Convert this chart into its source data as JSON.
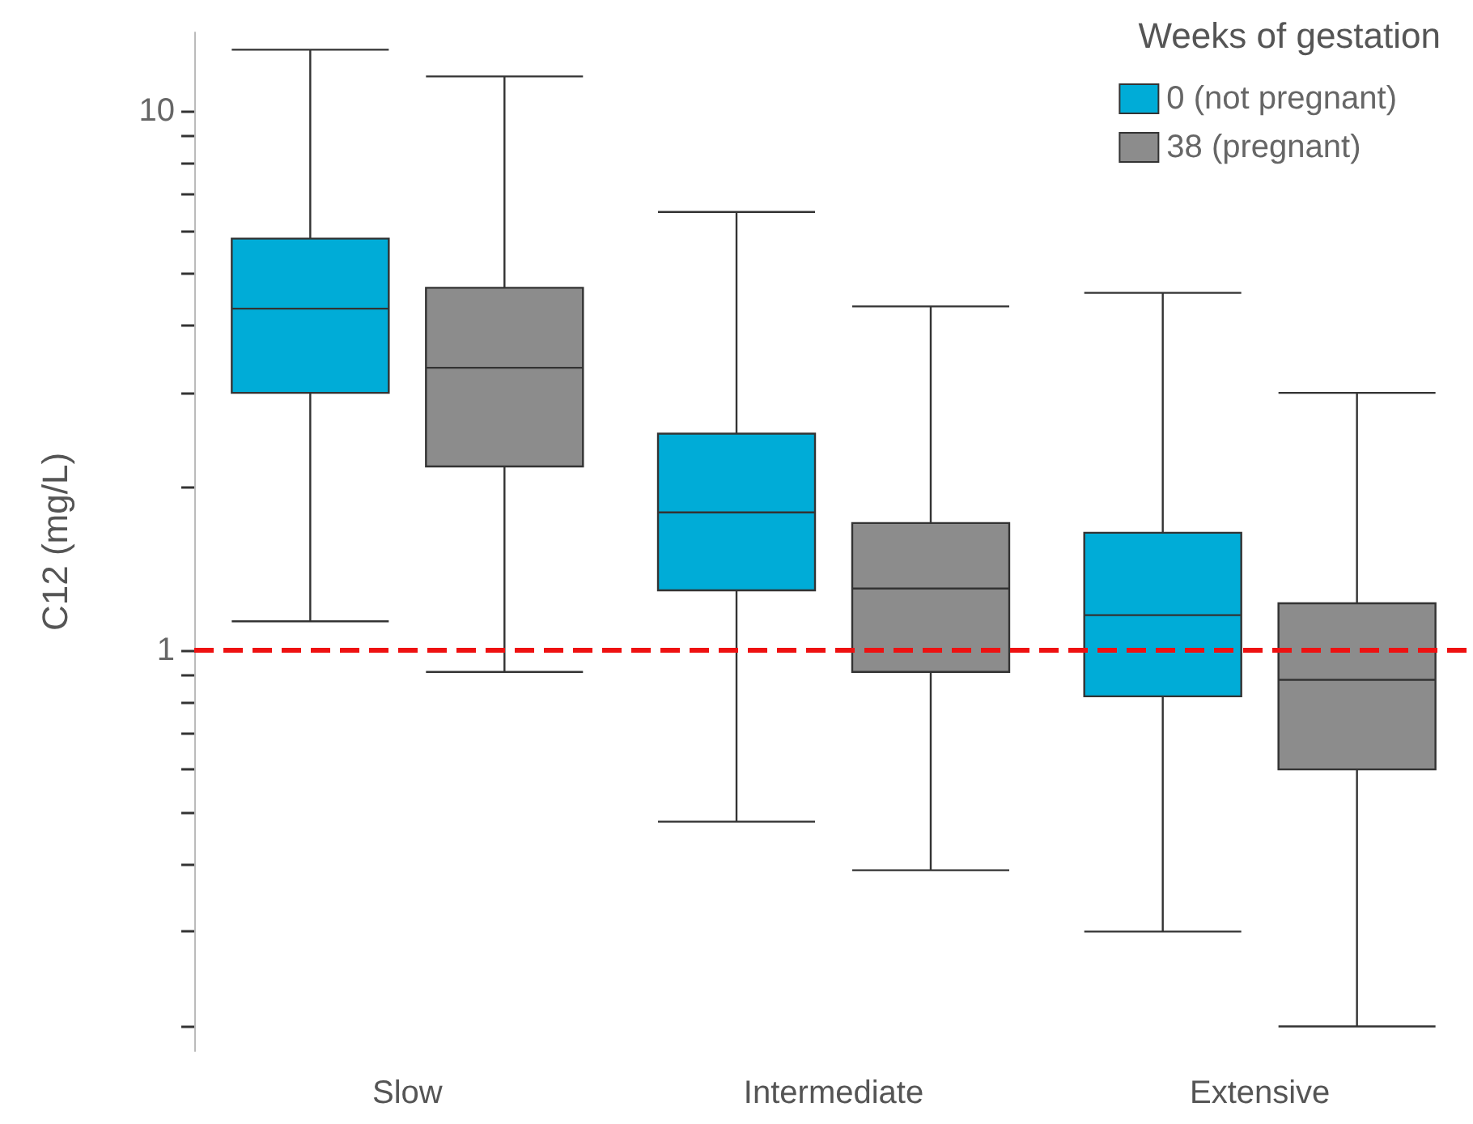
{
  "chart_data": {
    "type": "box",
    "ylabel": "C12 (mg/L)",
    "legend_title": "Weeks of gestation",
    "legend": "top right",
    "log": "y",
    "grid": false,
    "categories": [
      "Slow",
      "Intermediate",
      "Extensive"
    ],
    "ylim": [
      0.18,
      14
    ],
    "yticks": [
      {
        "value": 0.2,
        "label": null
      },
      {
        "value": 0.3,
        "label": null
      },
      {
        "value": 0.4,
        "label": null
      },
      {
        "value": 0.5,
        "label": null
      },
      {
        "value": 0.6,
        "label": null
      },
      {
        "value": 0.7,
        "label": null
      },
      {
        "value": 0.8,
        "label": null
      },
      {
        "value": 0.9,
        "label": null
      },
      1,
      {
        "value": 2,
        "label": null
      },
      {
        "value": 3,
        "label": null
      },
      {
        "value": 4,
        "label": null
      },
      {
        "value": 5,
        "label": null
      },
      {
        "value": 6,
        "label": null
      },
      {
        "value": 7,
        "label": null
      },
      {
        "value": 8,
        "label": null
      },
      {
        "value": 9,
        "label": null
      },
      10
    ],
    "series": [
      {
        "name": "0 (not pregnant)",
        "color": "#00acd7",
        "boxes": [
          {
            "low": 1.13,
            "q1": 3.0,
            "median": 4.3,
            "q3": 5.8,
            "high": 13.0
          },
          {
            "low": 0.48,
            "q1": 1.29,
            "median": 1.8,
            "q3": 2.52,
            "high": 6.5
          },
          {
            "low": 0.3,
            "q1": 0.82,
            "median": 1.16,
            "q3": 1.65,
            "high": 4.6
          }
        ]
      },
      {
        "name": "38 (pregnant)",
        "color": "#8c8c8c",
        "boxes": [
          {
            "low": 0.91,
            "q1": 2.19,
            "median": 3.34,
            "q3": 4.7,
            "high": 11.6
          },
          {
            "low": 0.39,
            "q1": 0.91,
            "median": 1.3,
            "q3": 1.72,
            "high": 4.34
          },
          {
            "low": 0.2,
            "q1": 0.6,
            "median": 0.88,
            "q3": 1.22,
            "high": 3.0
          }
        ]
      }
    ],
    "ref_lines": [
      {
        "axis": "y",
        "value": 1,
        "color": "#ee1111",
        "line_style": "dashed"
      }
    ]
  }
}
